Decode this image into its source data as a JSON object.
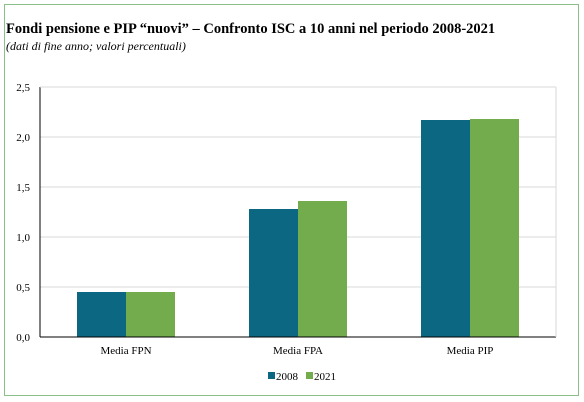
{
  "title": "Fondi pensione e PIP “nuovi” – Confronto ISC a 10 anni nel periodo 2008-2021",
  "subtitle": "(dati di fine anno; valori percentuali)",
  "colors": {
    "s2008": "#0b6782",
    "s2021": "#72ac4d",
    "frame": "#8cc08a",
    "grid": "#d9d9d9",
    "axis": "#000000"
  },
  "chart_data": {
    "type": "bar",
    "title": "Fondi pensione e PIP “nuovi” – Confronto ISC a 10 anni nel periodo 2008-2021",
    "subtitle": "(dati di fine anno; valori percentuali)",
    "categories": [
      "Media FPN",
      "Media FPA",
      "Media PIP"
    ],
    "series": [
      {
        "name": "2008",
        "values": [
          0.45,
          1.28,
          2.17
        ]
      },
      {
        "name": "2021",
        "values": [
          0.45,
          1.36,
          2.18
        ]
      }
    ],
    "ylim": [
      0,
      2.5
    ],
    "yticks": [
      "0,0",
      "0,5",
      "1,0",
      "1,5",
      "2,0",
      "2,5"
    ],
    "grid": true,
    "legend": "bottom-center"
  }
}
